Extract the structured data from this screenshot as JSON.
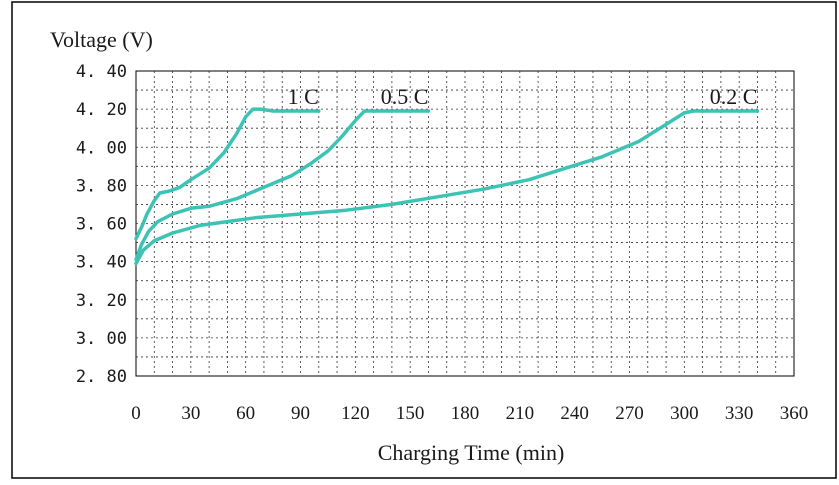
{
  "chart_data": {
    "type": "line",
    "ylabel": "Voltage (V)",
    "xlabel": "Charging Time (min)",
    "xlim": [
      0,
      360
    ],
    "ylim": [
      2.8,
      4.4
    ],
    "x_ticks": [
      "0",
      "30",
      "60",
      "90",
      "120",
      "150",
      "180",
      "210",
      "240",
      "270",
      "300",
      "330",
      "360"
    ],
    "y_ticks": [
      "4. 40",
      "4. 20",
      "4. 00",
      "3. 80",
      "3. 60",
      "3. 40",
      "3. 20",
      "3. 00",
      "2. 80"
    ],
    "grid": true,
    "line_color": "#3cc3b4",
    "series": [
      {
        "name": "1 C",
        "points": [
          [
            0,
            3.52
          ],
          [
            3,
            3.58
          ],
          [
            6,
            3.65
          ],
          [
            10,
            3.72
          ],
          [
            13,
            3.76
          ],
          [
            18,
            3.77
          ],
          [
            24,
            3.79
          ],
          [
            30,
            3.83
          ],
          [
            40,
            3.89
          ],
          [
            48,
            3.97
          ],
          [
            55,
            4.07
          ],
          [
            60,
            4.16
          ],
          [
            64,
            4.2
          ],
          [
            68,
            4.2
          ],
          [
            75,
            4.19
          ],
          [
            85,
            4.19
          ],
          [
            100,
            4.19
          ]
        ]
      },
      {
        "name": "0.5 C",
        "points": [
          [
            0,
            3.41
          ],
          [
            3,
            3.49
          ],
          [
            7,
            3.56
          ],
          [
            12,
            3.61
          ],
          [
            20,
            3.65
          ],
          [
            30,
            3.68
          ],
          [
            40,
            3.69
          ],
          [
            55,
            3.73
          ],
          [
            70,
            3.79
          ],
          [
            85,
            3.85
          ],
          [
            95,
            3.91
          ],
          [
            105,
            3.98
          ],
          [
            113,
            4.06
          ],
          [
            120,
            4.14
          ],
          [
            125,
            4.19
          ],
          [
            130,
            4.19
          ],
          [
            140,
            4.19
          ],
          [
            160,
            4.19
          ]
        ]
      },
      {
        "name": "0.2 C",
        "points": [
          [
            0,
            3.39
          ],
          [
            4,
            3.46
          ],
          [
            10,
            3.51
          ],
          [
            20,
            3.55
          ],
          [
            35,
            3.59
          ],
          [
            50,
            3.61
          ],
          [
            65,
            3.63
          ],
          [
            90,
            3.65
          ],
          [
            115,
            3.67
          ],
          [
            140,
            3.7
          ],
          [
            165,
            3.74
          ],
          [
            190,
            3.78
          ],
          [
            215,
            3.83
          ],
          [
            235,
            3.89
          ],
          [
            255,
            3.95
          ],
          [
            275,
            4.03
          ],
          [
            290,
            4.12
          ],
          [
            300,
            4.18
          ],
          [
            305,
            4.19
          ],
          [
            320,
            4.19
          ],
          [
            340,
            4.19
          ]
        ]
      }
    ]
  }
}
